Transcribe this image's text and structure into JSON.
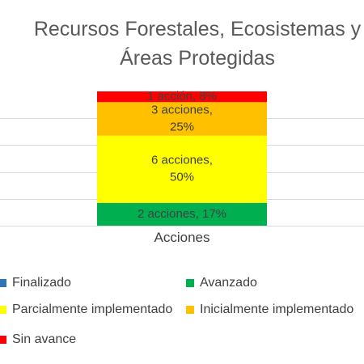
{
  "chart_data": {
    "type": "bar",
    "stacked": "percent",
    "title": "Recursos Forestales, Ecosistemas y Áreas Protegidas",
    "title_lines": [
      "Recursos Forestales, Ecosistemas y",
      "Áreas Protegidas"
    ],
    "categories": [
      "Acciones"
    ],
    "xlabel": "",
    "ylabel": "",
    "ylim": [
      0,
      100
    ],
    "grid": true,
    "legend_position": "bottom",
    "series": [
      {
        "name": "Finalizado",
        "values": [
          0
        ],
        "color": "#2e75b6",
        "label": ""
      },
      {
        "name": "Avanzado",
        "values": [
          17
        ],
        "color": "#00b050",
        "label": [
          "2 acciones, 17%"
        ]
      },
      {
        "name": "Parcialmente implementado",
        "values": [
          50
        ],
        "color": "#ffff00",
        "label": [
          "6 acciones,",
          "50%"
        ]
      },
      {
        "name": "Inicialmente implementado",
        "values": [
          25
        ],
        "color": "#ffc000",
        "label": [
          "3 acciones,",
          "25%"
        ]
      },
      {
        "name": "Sin avance",
        "values": [
          8
        ],
        "color": "#ff0000",
        "label": [
          "1 acción, 8%"
        ]
      }
    ]
  }
}
